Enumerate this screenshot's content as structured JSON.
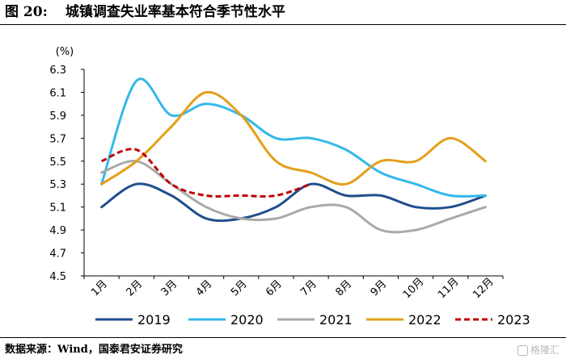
{
  "figure": {
    "number": "图 20:",
    "title": "城镇调查失业率基本符合季节性水平",
    "source": "数据来源：Wind，国泰君安证券研究",
    "watermark": "格隆汇"
  },
  "chart_data": {
    "type": "line",
    "title": "",
    "xlabel": "",
    "ylabel": "",
    "unit_label": "(%)",
    "categories": [
      "1月",
      "2月",
      "3月",
      "4月",
      "5月",
      "6月",
      "7月",
      "8月",
      "9月",
      "10月",
      "11月",
      "12月"
    ],
    "ylim": [
      4.5,
      6.3
    ],
    "yticks": [
      4.5,
      4.7,
      4.9,
      5.1,
      5.3,
      5.5,
      5.7,
      5.9,
      6.1,
      6.3
    ],
    "ytick_labels": [
      "4.5",
      "4.7",
      "4.9",
      "5.1",
      "5.3",
      "5.5",
      "5.7",
      "5.9",
      "6.1",
      "6.3"
    ],
    "grid": false,
    "legend_position": "bottom",
    "series": [
      {
        "name": "2019",
        "color": "#1f4e8c",
        "dash": "solid",
        "values": [
          5.1,
          5.3,
          5.2,
          5.0,
          5.0,
          5.1,
          5.3,
          5.2,
          5.2,
          5.1,
          5.1,
          5.2
        ]
      },
      {
        "name": "2020",
        "color": "#33b9ea",
        "dash": "solid",
        "values": [
          5.3,
          6.2,
          5.9,
          6.0,
          5.9,
          5.7,
          5.7,
          5.6,
          5.4,
          5.3,
          5.2,
          5.2
        ]
      },
      {
        "name": "2021",
        "color": "#a9a9a9",
        "dash": "solid",
        "values": [
          5.4,
          5.5,
          5.3,
          5.1,
          5.0,
          5.0,
          5.1,
          5.1,
          4.9,
          4.9,
          5.0,
          5.1
        ]
      },
      {
        "name": "2022",
        "color": "#e3a01a",
        "dash": "solid",
        "values": [
          5.3,
          5.5,
          5.8,
          6.1,
          5.9,
          5.5,
          5.4,
          5.3,
          5.5,
          5.5,
          5.7,
          5.5
        ]
      },
      {
        "name": "2023",
        "color": "#c00000",
        "dash": "dashed",
        "values": [
          5.5,
          5.6,
          5.3,
          5.2,
          5.2,
          5.2,
          5.3,
          null,
          null,
          null,
          null,
          null
        ]
      }
    ]
  }
}
